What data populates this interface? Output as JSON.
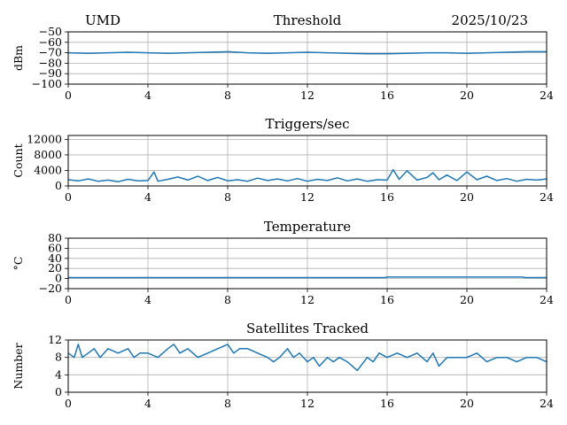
{
  "header": {
    "site": "UMD",
    "date": "2025/10/23"
  },
  "colors": {
    "series": "#1f77b4"
  },
  "chart_data": [
    {
      "type": "line",
      "title": "Threshold",
      "ylabel": "dBm",
      "xlim": [
        0,
        24
      ],
      "ylim": [
        -100,
        -50
      ],
      "xticks": [
        0,
        4,
        8,
        12,
        16,
        20,
        24
      ],
      "xtick_labels": [
        "0",
        "4",
        "8",
        "12",
        "16",
        "20",
        "24"
      ],
      "yticks": [
        -100,
        -90,
        -80,
        -70,
        -60,
        -50
      ],
      "ytick_labels": [
        "−100",
        "−90",
        "−80",
        "−70",
        "−60",
        "−50"
      ],
      "grid": true,
      "series": [
        {
          "x": [
            0,
            1,
            2,
            3,
            4,
            5,
            6,
            7,
            8,
            9,
            10,
            11,
            12,
            13,
            14,
            15,
            16,
            17,
            18,
            19,
            20,
            21,
            22,
            23,
            24
          ],
          "y": [
            -70,
            -70.5,
            -70,
            -69.5,
            -70,
            -70.5,
            -70,
            -69.5,
            -69,
            -70,
            -70.5,
            -70,
            -69.5,
            -70,
            -70.5,
            -71,
            -71,
            -70.5,
            -70,
            -70,
            -70.5,
            -70,
            -69.5,
            -69,
            -69
          ]
        }
      ]
    },
    {
      "type": "line",
      "title": "Triggers/sec",
      "ylabel": "Count",
      "xlim": [
        0,
        24
      ],
      "ylim": [
        0,
        13000
      ],
      "xticks": [
        0,
        4,
        8,
        12,
        16,
        20,
        24
      ],
      "xtick_labels": [
        "0",
        "4",
        "8",
        "12",
        "16",
        "20",
        "24"
      ],
      "yticks": [
        0,
        4000,
        8000,
        12000
      ],
      "ytick_labels": [
        "0",
        "4000",
        "8000",
        "12000"
      ],
      "grid": true,
      "series": [
        {
          "x": [
            0,
            0.5,
            1,
            1.5,
            2,
            2.5,
            3,
            3.5,
            4,
            4.3,
            4.5,
            5,
            5.5,
            6,
            6.5,
            7,
            7.5,
            8,
            8.5,
            9,
            9.5,
            10,
            10.5,
            11,
            11.5,
            12,
            12.5,
            13,
            13.5,
            14,
            14.5,
            15,
            15.5,
            16,
            16.3,
            16.6,
            17,
            17.5,
            18,
            18.3,
            18.6,
            19,
            19.5,
            20,
            20.5,
            21,
            21.5,
            22,
            22.5,
            23,
            23.5,
            24
          ],
          "y": [
            1600,
            1300,
            1800,
            1200,
            1500,
            1100,
            1700,
            1300,
            1400,
            3600,
            1200,
            1700,
            2300,
            1500,
            2500,
            1400,
            2200,
            1300,
            1600,
            1200,
            2000,
            1400,
            1800,
            1300,
            1900,
            1200,
            1700,
            1400,
            2100,
            1300,
            1800,
            1200,
            1600,
            1500,
            4200,
            1700,
            3900,
            1500,
            2200,
            3400,
            1600,
            2800,
            1400,
            3600,
            1600,
            2500,
            1400,
            1900,
            1200,
            1700,
            1500,
            1800
          ]
        }
      ]
    },
    {
      "type": "line",
      "title": "Temperature",
      "ylabel": "°C",
      "xlim": [
        0,
        24
      ],
      "ylim": [
        -20,
        80
      ],
      "xticks": [
        0,
        4,
        8,
        12,
        16,
        20,
        24
      ],
      "xtick_labels": [
        "0",
        "4",
        "8",
        "12",
        "16",
        "20",
        "24"
      ],
      "yticks": [
        -20,
        0,
        20,
        40,
        60,
        80
      ],
      "ytick_labels": [
        "−20",
        "0",
        "20",
        "40",
        "60",
        "80"
      ],
      "grid": true,
      "series": [
        {
          "x": [
            0,
            4,
            8,
            12,
            15.9,
            16,
            20,
            22.8,
            22.9,
            24
          ],
          "y": [
            2,
            2,
            2,
            2,
            2,
            3,
            3,
            3,
            2,
            2
          ]
        }
      ]
    },
    {
      "type": "line",
      "title": "Satellites Tracked",
      "ylabel": "Number",
      "xlim": [
        0,
        24
      ],
      "ylim": [
        0,
        12
      ],
      "xticks": [
        0,
        4,
        8,
        12,
        16,
        20,
        24
      ],
      "xtick_labels": [
        "0",
        "4",
        "8",
        "12",
        "16",
        "20",
        "24"
      ],
      "yticks": [
        0,
        4,
        8,
        12
      ],
      "ytick_labels": [
        "0",
        "4",
        "8",
        "12"
      ],
      "grid": true,
      "series": [
        {
          "x": [
            0,
            0.3,
            0.5,
            0.7,
            1,
            1.3,
            1.6,
            2,
            2.5,
            3,
            3.3,
            3.6,
            4,
            4.5,
            5,
            5.3,
            5.6,
            6,
            6.5,
            7,
            7.5,
            8,
            8.3,
            8.6,
            9,
            9.5,
            10,
            10.3,
            10.6,
            11,
            11.3,
            11.6,
            12,
            12.3,
            12.6,
            13,
            13.3,
            13.6,
            14,
            14.5,
            15,
            15.3,
            15.6,
            16,
            16.5,
            17,
            17.5,
            18,
            18.3,
            18.6,
            19,
            19.5,
            20,
            20.5,
            21,
            21.5,
            22,
            22.5,
            23,
            23.5,
            24
          ],
          "y": [
            9,
            8,
            11,
            8,
            9,
            10,
            8,
            10,
            9,
            10,
            8,
            9,
            9,
            8,
            10,
            11,
            9,
            10,
            8,
            9,
            10,
            11,
            9,
            10,
            10,
            9,
            8,
            7,
            8,
            10,
            8,
            9,
            7,
            8,
            6,
            8,
            7,
            8,
            7,
            5,
            8,
            7,
            9,
            8,
            9,
            8,
            9,
            7,
            9,
            6,
            8,
            8,
            8,
            9,
            7,
            8,
            8,
            7,
            8,
            8,
            7
          ]
        }
      ]
    }
  ]
}
